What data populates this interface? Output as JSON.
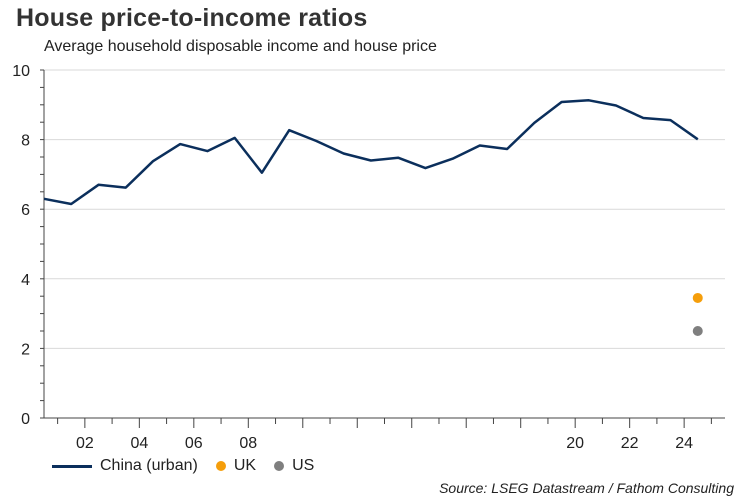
{
  "title": "House price-to-income ratios",
  "subtitle": "Average household disposable income and house price",
  "source": "Source: LSEG Datastream / Fathom Consulting",
  "colors": {
    "china": "#0b2f5c",
    "uk": "#f59e0b",
    "us": "#7f7f7f",
    "grid": "#d9d9d9",
    "axis": "#444444"
  },
  "chart_data": {
    "type": "line",
    "title": "House price-to-income ratios",
    "subtitle": "Average household disposable income and house price",
    "xlabel": "",
    "ylabel": "",
    "ylim": [
      0,
      10
    ],
    "xlim": [
      2000.5,
      2025.5
    ],
    "yticks": [
      0,
      2,
      4,
      6,
      8,
      10
    ],
    "xticks": [
      {
        "label": "02",
        "value": 2002
      },
      {
        "label": "04",
        "value": 2004
      },
      {
        "label": "06",
        "value": 2006
      },
      {
        "label": "08",
        "value": 2008
      },
      {
        "label": "20",
        "value": 2020
      },
      {
        "label": "22",
        "value": 2022
      },
      {
        "label": "24",
        "value": 2024
      }
    ],
    "series": [
      {
        "name": "China (urban)",
        "type": "line",
        "x": [
          2000.5,
          2001.5,
          2002.5,
          2003.5,
          2004.5,
          2005.5,
          2006.5,
          2007.5,
          2008.5,
          2009.5,
          2010.5,
          2011.5,
          2012.5,
          2013.5,
          2014.5,
          2015.5,
          2016.5,
          2017.5,
          2018.5,
          2019.5,
          2020.5,
          2021.5,
          2022.5,
          2023.5,
          2024.5
        ],
        "values": [
          6.3,
          6.15,
          6.7,
          6.62,
          7.38,
          7.87,
          7.67,
          8.05,
          7.05,
          8.27,
          7.96,
          7.6,
          7.4,
          7.48,
          7.18,
          7.45,
          7.83,
          7.73,
          8.48,
          9.08,
          9.13,
          8.98,
          8.62,
          8.56,
          8.01
        ]
      },
      {
        "name": "UK",
        "type": "point",
        "x": [
          2024.5
        ],
        "values": [
          3.45
        ]
      },
      {
        "name": "US",
        "type": "point",
        "x": [
          2024.5
        ],
        "values": [
          2.5
        ]
      }
    ],
    "legend": [
      "China (urban)",
      "UK",
      "US"
    ],
    "legend_position": "bottom-left",
    "grid": true
  }
}
